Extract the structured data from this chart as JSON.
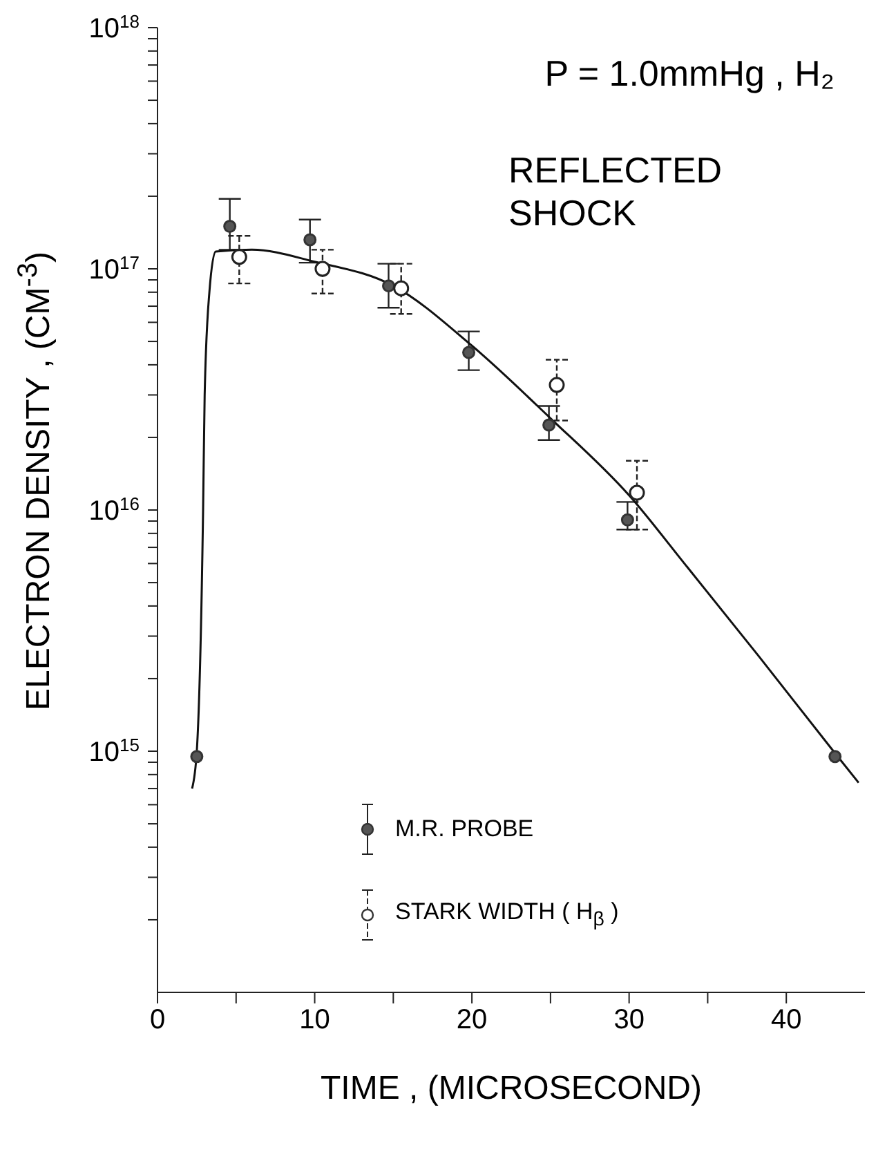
{
  "chart_data": {
    "type": "scatter",
    "xlabel": "TIME , (MICROSECOND)",
    "ylabel": "ELECTRON DENSITY , (CM$^{-3}$)",
    "annotations": [
      "P = 1.0mmHg , H₂",
      "REFLECTED SHOCK"
    ],
    "log": "y",
    "legend": "bottom",
    "marker": "circle",
    "xlim": [
      0,
      45
    ],
    "xticks": [
      0,
      {
        "value": 5,
        "label": null
      },
      10,
      {
        "value": 15,
        "label": null
      },
      20,
      {
        "value": 25,
        "label": null
      },
      30,
      {
        "value": 35,
        "label": null
      },
      40
    ],
    "ylim": [
      100000000000000.0,
      1e+18
    ],
    "yticks": [
      {
        "value": 200000000000000.0,
        "label": null
      },
      {
        "value": 300000000000000.0,
        "label": null
      },
      {
        "value": 400000000000000.0,
        "label": null
      },
      {
        "value": 500000000000000.0,
        "label": null
      },
      {
        "value": 600000000000000.0,
        "label": null
      },
      {
        "value": 700000000000000.0,
        "label": null
      },
      {
        "value": 800000000000000.0,
        "label": null
      },
      {
        "value": 900000000000000.0,
        "label": null
      },
      {
        "value": 1000000000000000.0,
        "label": "10$^{15}$"
      },
      {
        "value": 2000000000000000.0,
        "label": null
      },
      {
        "value": 3000000000000000.0,
        "label": null
      },
      {
        "value": 4000000000000000.0,
        "label": null
      },
      {
        "value": 5000000000000000.0,
        "label": null
      },
      {
        "value": 6000000000000000.0,
        "label": null
      },
      {
        "value": 7000000000000000.0,
        "label": null
      },
      {
        "value": 8000000000000000.0,
        "label": null
      },
      {
        "value": 9000000000000000.0,
        "label": null
      },
      {
        "value": 1e+16,
        "label": "10$^{16}$"
      },
      {
        "value": 2e+16,
        "label": null
      },
      {
        "value": 3e+16,
        "label": null
      },
      {
        "value": 4e+16,
        "label": null
      },
      {
        "value": 5e+16,
        "label": null
      },
      {
        "value": 6e+16,
        "label": null
      },
      {
        "value": 7e+16,
        "label": null
      },
      {
        "value": 8e+16,
        "label": null
      },
      {
        "value": 9e+16,
        "label": null
      },
      {
        "value": 1e+17,
        "label": "10$^{17}$"
      },
      {
        "value": 2e+17,
        "label": null
      },
      {
        "value": 3e+17,
        "label": null
      },
      {
        "value": 4e+17,
        "label": null
      },
      {
        "value": 5e+17,
        "label": null
      },
      {
        "value": 6e+17,
        "label": null
      },
      {
        "value": 7e+17,
        "label": null
      },
      {
        "value": 8e+17,
        "label": null
      },
      {
        "value": 9e+17,
        "label": null
      },
      {
        "value": 1e+18,
        "label": "10$^{18}$"
      }
    ],
    "series": [
      {
        "name": "M.R. PROBE",
        "color": "#555555",
        "x": [
          2.5,
          4.6,
          9.7,
          14.7,
          19.8,
          24.9,
          29.9,
          43.1
        ],
        "values": [
          950000000000000.0,
          1.5e+17,
          1.32e+17,
          8.5e+16,
          4.5e+16,
          2.25e+16,
          9100000000000000.0,
          950000000000000.0
        ],
        "errors": [
          null,
          [
            1.2e+17,
            1.95e+17
          ],
          [
            1.06e+17,
            1.6e+17
          ],
          [
            6.9e+16,
            1.05e+17
          ],
          [
            3.8e+16,
            5.5e+16
          ],
          [
            1.95e+16,
            2.7e+16
          ],
          [
            8300000000000000.0,
            1.08e+16
          ],
          null
        ]
      },
      {
        "name": "STARK WIDTH ( H$_{β}$ )",
        "color": "#222222",
        "line_style": "dashed",
        "x": [
          5.2,
          10.5,
          15.5,
          25.4,
          30.5
        ],
        "values": [
          1.12e+17,
          1e+17,
          8.3e+16,
          3.3e+16,
          1.18e+16
        ],
        "errors": [
          [
            8.7e+16,
            1.37e+17
          ],
          [
            7.9e+16,
            1.2e+17
          ],
          [
            6.5e+16,
            1.05e+17
          ],
          [
            2.35e+16,
            4.2e+16
          ],
          [
            8300000000000000.0,
            1.6e+16
          ]
        ]
      },
      {
        "type": "line",
        "color": "#111111",
        "marker": "none",
        "x": [
          2.2,
          2.5,
          2.9,
          3.0,
          3.3,
          3.7,
          6,
          10,
          15,
          20,
          25,
          30,
          33.7,
          38.2,
          43,
          44.6
        ],
        "values": [
          700000000000000.0,
          1000000000000000.0,
          1e+16,
          3e+16,
          8e+16,
          1.18e+17,
          1.2e+17,
          1.07e+17,
          8.5e+16,
          4.8e+16,
          2.4e+16,
          1.15e+16,
          5800000000000000.0,
          2500000000000000.0,
          1000000000000000.0,
          740000000000000.0
        ]
      }
    ]
  }
}
